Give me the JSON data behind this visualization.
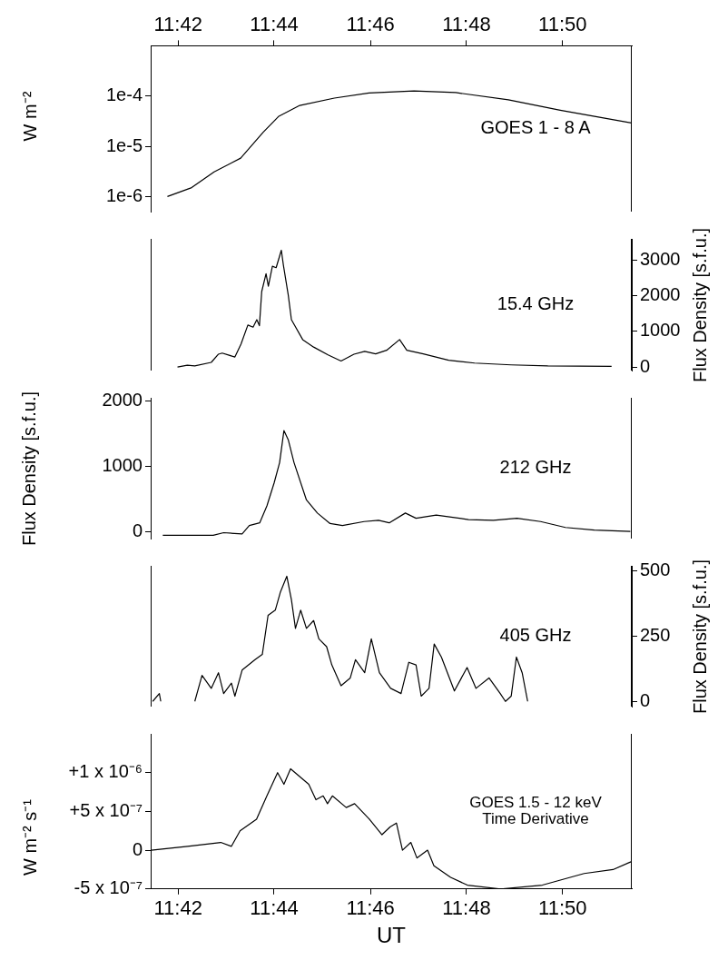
{
  "chart_data": [
    {
      "type": "line",
      "log": true,
      "ylabel": "W m⁻²",
      "xlim": [
        11.6905,
        11.8573
      ],
      "xticks": [
        {
          "value": 11.7,
          "label": "11:42"
        },
        {
          "value": 11.7333,
          "label": "11:44"
        },
        {
          "value": 11.7667,
          "label": "11:46"
        },
        {
          "value": 11.8,
          "label": "11:48"
        },
        {
          "value": 11.8333,
          "label": "11:50"
        }
      ],
      "ylim": [
        5e-07,
        0.001
      ],
      "yticks": [
        {
          "value": 1e-06,
          "label": "1e-6"
        },
        {
          "value": 1e-05,
          "label": "1e-5"
        },
        {
          "value": 0.0001,
          "label": "1e-4"
        }
      ],
      "annotations": [
        "GOES 1 - 8 A"
      ],
      "series": [
        {
          "color": "#000000",
          "x": [
            11.6963,
            11.7047,
            11.7125,
            11.7217,
            11.7295,
            11.7348,
            11.7422,
            11.7542,
            11.7662,
            11.7818,
            11.7963,
            11.8145,
            11.8325,
            11.8572
          ],
          "values": [
            1e-06,
            1.5e-06,
            3.1e-06,
            5.8e-06,
            1.9e-05,
            3.9e-05,
            6.5e-05,
            9.1e-05,
            0.000115,
            0.000126,
            0.000117,
            8.4e-05,
            5.2e-05,
            2.9e-05
          ]
        }
      ]
    },
    {
      "type": "line",
      "xlim": [
        11.6905,
        11.8573
      ],
      "tick_labels": "y",
      "y2lim": [
        -100,
        3600
      ],
      "y2ticks": [
        0,
        1000,
        2000,
        3000
      ],
      "y2label": "Flux Density [s.f.u.]",
      "annotations": [
        "15.4 GHz"
      ],
      "series": [
        {
          "color": "#000000",
          "axis": "y2",
          "x": [
            11.6998,
            11.7032,
            11.7058,
            11.7115,
            11.714,
            11.7153,
            11.7197,
            11.7218,
            11.7242,
            11.726,
            11.7273,
            11.7282,
            11.729,
            11.7305,
            11.7313,
            11.7327,
            11.734,
            11.7358,
            11.7365,
            11.7382,
            11.7393,
            11.7432,
            11.747,
            11.752,
            11.7565,
            11.761,
            11.7647,
            11.7685,
            11.7723,
            11.7768,
            11.7793,
            11.785,
            11.7938,
            11.8028,
            11.8155,
            11.8282,
            11.8503
          ],
          "values": [
            0,
            50,
            30,
            130,
            360,
            390,
            280,
            640,
            1180,
            1120,
            1330,
            1160,
            2120,
            2620,
            2270,
            2830,
            2790,
            3280,
            2870,
            2020,
            1330,
            770,
            560,
            340,
            170,
            360,
            440,
            370,
            470,
            770,
            470,
            370,
            190,
            110,
            60,
            30,
            20
          ]
        }
      ]
    },
    {
      "type": "line",
      "xlim": [
        11.6905,
        11.8573
      ],
      "tick_labels": "y",
      "ylim": [
        -100,
        2050
      ],
      "yticks": [
        0,
        1000,
        2000
      ],
      "ylabel": "Flux Density [s.f.u.]",
      "annotations": [
        "212 GHz"
      ],
      "series": [
        {
          "color": "#000000",
          "x": [
            11.6947,
            11.7122,
            11.7158,
            11.7222,
            11.7247,
            11.7283,
            11.7308,
            11.7333,
            11.7352,
            11.7367,
            11.7382,
            11.7402,
            11.7445,
            11.7483,
            11.7527,
            11.757,
            11.7645,
            11.7695,
            11.7732,
            11.7788,
            11.7825,
            11.7895,
            11.8007,
            11.8093,
            11.8175,
            11.8257,
            11.8343,
            11.8443,
            11.8568
          ],
          "values": [
            -50,
            -50,
            -10,
            -30,
            100,
            140,
            400,
            750,
            1060,
            1550,
            1410,
            1060,
            490,
            290,
            130,
            100,
            160,
            180,
            140,
            290,
            210,
            260,
            190,
            180,
            210,
            160,
            70,
            30,
            10
          ]
        }
      ]
    },
    {
      "type": "line",
      "xlim": [
        11.6905,
        11.8573
      ],
      "tick_labels": "y",
      "y2lim": [
        -20,
        520
      ],
      "y2ticks": [
        0,
        250,
        500
      ],
      "y2label": "Flux Density [s.f.u.]",
      "annotations": [
        "405 GHz"
      ],
      "series": [
        {
          "color": "#000000",
          "axis": "y2",
          "x": [
            11.6912,
            11.6935,
            11.694,
            11.7,
            11.7058,
            11.7083,
            11.7115,
            11.714,
            11.7158,
            11.7185,
            11.7197,
            11.7222,
            11.7267,
            11.7292,
            11.7312,
            11.7337,
            11.7355,
            11.7377,
            11.7393,
            11.7407,
            11.7425,
            11.7445,
            11.747,
            11.7488,
            11.7515,
            11.7533,
            11.7565,
            11.7597,
            11.7615,
            11.7647,
            11.767,
            11.7698,
            11.7737,
            11.7773,
            11.78,
            11.7825,
            11.7843,
            11.787,
            11.7888,
            11.7913,
            11.7958,
            11.8002,
            11.8033,
            11.8078,
            11.8117,
            11.8135,
            11.8155,
            11.8173,
            11.8193,
            11.8212
          ],
          "values": [
            0,
            30,
            0,
            null,
            0,
            100,
            50,
            110,
            30,
            70,
            20,
            120,
            160,
            180,
            330,
            350,
            420,
            480,
            390,
            280,
            350,
            280,
            310,
            240,
            210,
            140,
            60,
            90,
            160,
            110,
            240,
            110,
            50,
            30,
            150,
            140,
            20,
            50,
            220,
            170,
            40,
            130,
            50,
            90,
            30,
            0,
            20,
            170,
            110,
            0
          ]
        }
      ]
    },
    {
      "type": "line",
      "xlim": [
        11.6905,
        11.8573
      ],
      "xticks": [
        {
          "value": 11.7,
          "label": "11:42"
        },
        {
          "value": 11.7333,
          "label": "11:44"
        },
        {
          "value": 11.7667,
          "label": "11:46"
        },
        {
          "value": 11.8,
          "label": "11:48"
        },
        {
          "value": 11.8333,
          "label": "11:50"
        }
      ],
      "xlabel": "UT",
      "ylim": [
        -5e-07,
        1.5e-06
      ],
      "yticks": [
        {
          "value": -5e-07,
          "label": "-5 x 10⁻⁷"
        },
        {
          "value": 0,
          "label": "0"
        },
        {
          "value": 5e-07,
          "label": "+5 x 10⁻⁷"
        },
        {
          "value": 1e-06,
          "label": "+1 x 10⁻⁶"
        }
      ],
      "ylabel": "W m⁻² s⁻¹",
      "annotations": [
        "GOES 1.5 - 12 keV",
        "Time Derivative"
      ],
      "series": [
        {
          "color": "#000000",
          "x": [
            11.6907,
            11.7033,
            11.7148,
            11.7185,
            11.7215,
            11.7272,
            11.7308,
            11.7345,
            11.7367,
            11.739,
            11.7453,
            11.7478,
            11.7503,
            11.7518,
            11.7535,
            11.7583,
            11.7612,
            11.7663,
            11.7707,
            11.7735,
            11.7757,
            11.7778,
            11.7807,
            11.7828,
            11.7865,
            11.7887,
            11.7945,
            11.8003,
            11.8118,
            11.8263,
            11.8408,
            11.8508,
            11.857
          ],
          "values": [
            0,
            5e-08,
            1e-07,
            5e-08,
            2.5e-07,
            4e-07,
            7e-07,
            1e-06,
            8.5e-07,
            1.05e-06,
            8.5e-07,
            6.5e-07,
            7e-07,
            6e-07,
            7e-07,
            5.5e-07,
            6e-07,
            4e-07,
            2e-07,
            3e-07,
            3.5e-07,
            0,
            1e-07,
            -1e-07,
            0,
            -2e-07,
            -3.5e-07,
            -4.5e-07,
            -5e-07,
            -4.5e-07,
            -3e-07,
            -2.5e-07,
            -1.5e-07
          ]
        }
      ]
    }
  ]
}
